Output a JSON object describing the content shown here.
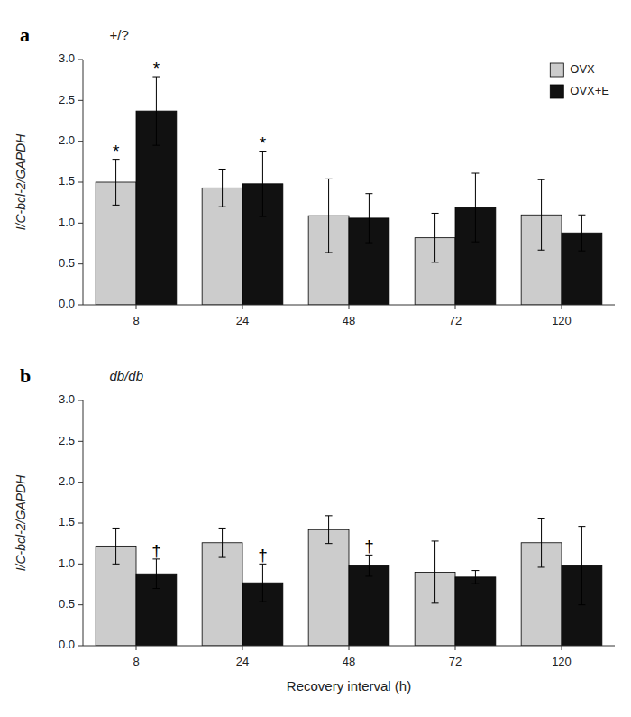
{
  "chart_data": [
    {
      "type": "bar",
      "title": "a",
      "subtitle": "+/?",
      "categories": [
        "8",
        "24",
        "48",
        "72",
        "120"
      ],
      "series": [
        {
          "name": "OVX",
          "color": "#cccccc",
          "values": [
            1.5,
            1.43,
            1.09,
            0.82,
            1.1
          ],
          "errors": [
            0.28,
            0.23,
            0.45,
            0.3,
            0.43
          ],
          "sig_labels": [
            "*",
            null,
            null,
            null,
            null
          ]
        },
        {
          "name": "OVX+E",
          "color": "#111111",
          "values": [
            2.37,
            1.48,
            1.06,
            1.19,
            0.88
          ],
          "errors": [
            0.42,
            0.4,
            0.3,
            0.42,
            0.22
          ],
          "sig_labels": [
            "*",
            "*",
            null,
            null,
            null
          ]
        }
      ],
      "y_label": "I/C-bcl-2/GAPDH",
      "ylim": [
        0,
        3.0
      ],
      "yticks": [
        {
          "value": 0,
          "label": "0.0"
        },
        0.5,
        {
          "value": 1.0,
          "label": "1.0"
        },
        1.5,
        {
          "value": 2.0,
          "label": "2.0"
        },
        2.5,
        {
          "value": 3.0,
          "label": "3.0"
        }
      ],
      "grid": false,
      "legend": "upper right"
    },
    {
      "type": "bar",
      "title": "b",
      "subtitle": "db/db",
      "categories": [
        "8",
        "24",
        "48",
        "72",
        "120"
      ],
      "series": [
        {
          "color": "#cccccc",
          "values": [
            1.22,
            1.26,
            1.42,
            0.9,
            1.26
          ],
          "errors": [
            0.22,
            0.18,
            0.17,
            0.38,
            0.3
          ],
          "sig_labels": [
            null,
            null,
            null,
            null,
            null
          ]
        },
        {
          "color": "#111111",
          "values": [
            0.88,
            0.77,
            0.98,
            0.84,
            0.98
          ],
          "errors": [
            0.18,
            0.23,
            0.13,
            0.08,
            0.48
          ],
          "sig_labels": [
            "†",
            "†",
            "†",
            null,
            null
          ]
        }
      ],
      "y_label": "I/C-bcl-2/GAPDH",
      "x_label": "Recovery interval (h)",
      "ylim": [
        0,
        3.0
      ],
      "yticks": [
        {
          "value": 0,
          "label": "0.0"
        },
        0.5,
        {
          "value": 1.0,
          "label": "1.0"
        },
        1.5,
        {
          "value": 2.0,
          "label": "2.0"
        },
        2.5,
        {
          "value": 3.0,
          "label": "3.0"
        }
      ],
      "grid": false,
      "legend": false
    }
  ]
}
